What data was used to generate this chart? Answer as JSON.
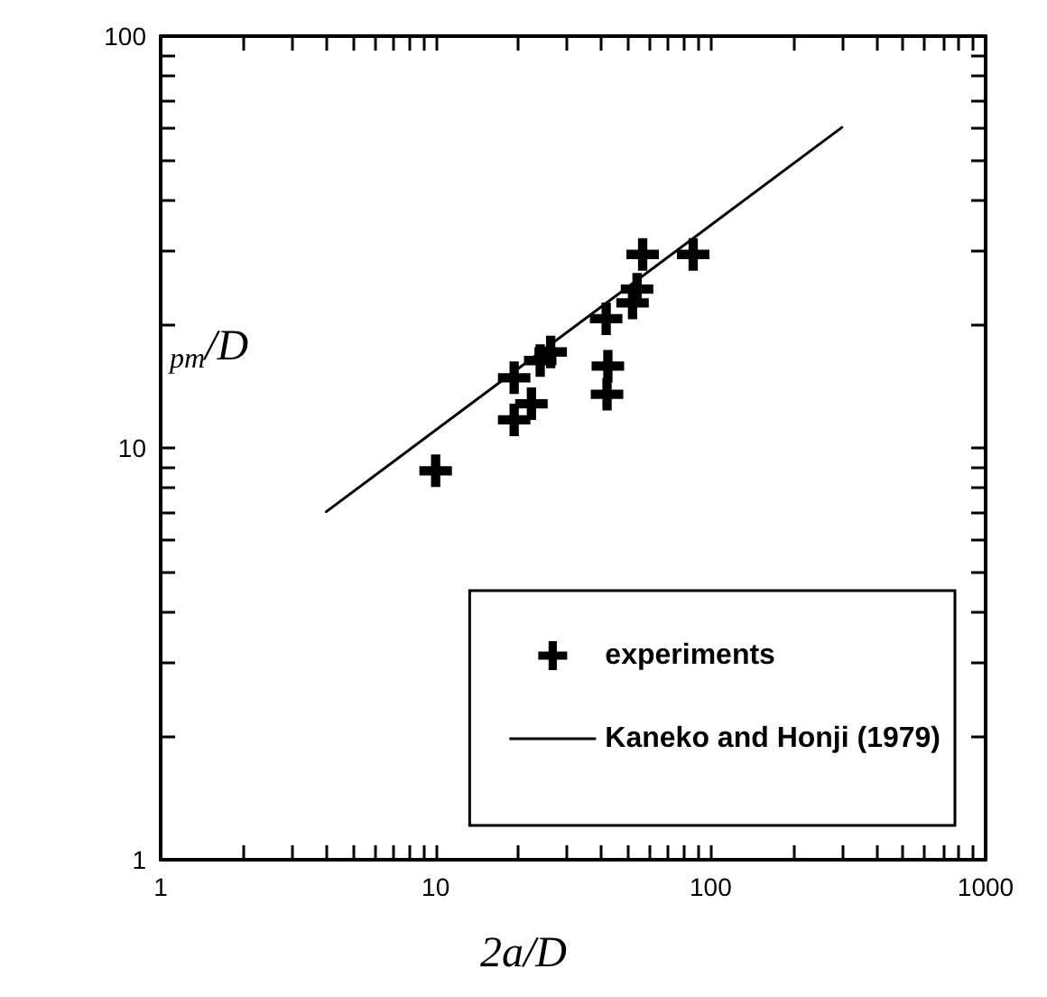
{
  "chart_data": {
    "type": "scatter",
    "xlabel": "2a/D",
    "ylabel": "$_{pm}$/D",
    "log": "xy",
    "xlim": [
      1,
      1000
    ],
    "ylim": [
      1,
      100
    ],
    "xticks": [
      1,
      10,
      100,
      1000
    ],
    "yticks": [
      1,
      10,
      100
    ],
    "legend": "bottom right",
    "grid": false,
    "series": [
      {
        "name": "experiments",
        "marker": "cross",
        "color": "#000000",
        "x": [
          10,
          19.3,
          19.3,
          22.3,
          24,
          26.2,
          41.7,
          42.3,
          42,
          52,
          54,
          56.6,
          86.4
        ],
        "values": [
          8.8,
          14.8,
          11.7,
          12.8,
          16.3,
          17.1,
          20.6,
          15.8,
          13.5,
          22.5,
          24.3,
          29.5,
          29.5
        ]
      },
      {
        "name": "Kaneko and Honji (1979)",
        "type": "line",
        "marker": "none",
        "line_style": "solid",
        "color": "#000000",
        "x": [
          4,
          300
        ],
        "values": [
          7,
          60
        ]
      }
    ]
  }
}
